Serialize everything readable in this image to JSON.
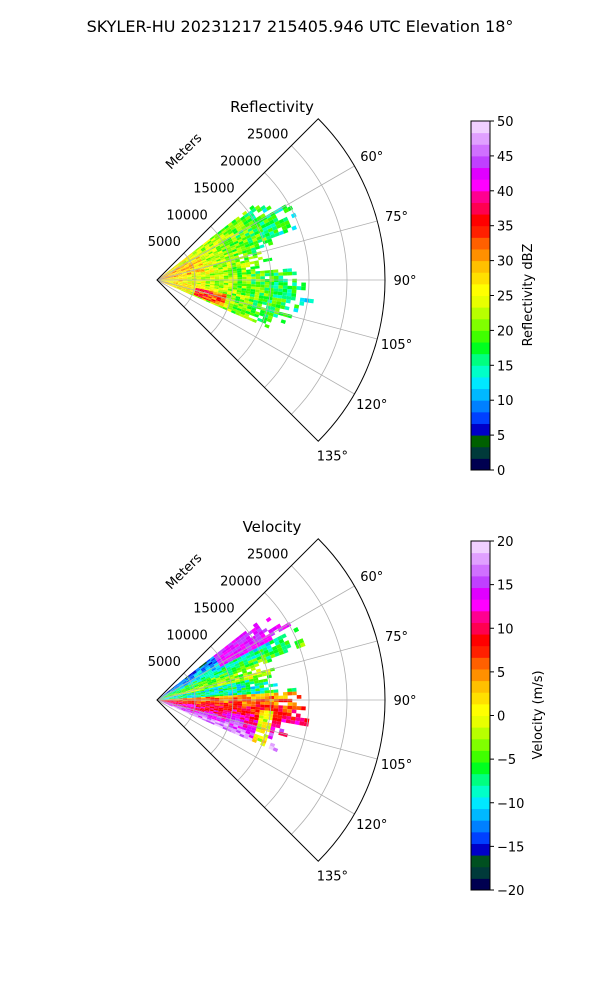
{
  "suptitle": "SKYLER-HU  20231217  215405.946 UTC Elevation 18°",
  "chart_data": [
    {
      "type": "polar-sector",
      "title": "Reflectivity",
      "range_label": "Meters",
      "theta_range_deg": [
        45,
        135
      ],
      "theta_ticks_deg": [
        60,
        75,
        90,
        105,
        120,
        135
      ],
      "theta_tick_labels": [
        "60°",
        "75°",
        "90°",
        "105°",
        "120°",
        "135°"
      ],
      "r_max": 30000,
      "r_ticks": [
        5000,
        10000,
        15000,
        20000,
        25000
      ],
      "r_tick_labels": [
        "5000",
        "10000",
        "15000",
        "20000",
        "25000"
      ],
      "grid": true,
      "colorbar": {
        "label": "Reflectivity dBZ",
        "vmin": 0,
        "vmax": 50,
        "ticks": [
          0,
          5,
          10,
          15,
          20,
          25,
          30,
          35,
          40,
          45,
          50
        ],
        "tick_labels": [
          "0",
          "5",
          "10",
          "15",
          "20",
          "25",
          "30",
          "35",
          "40",
          "45",
          "50"
        ],
        "colors": [
          "#000050",
          "#003a3a",
          "#006000",
          "#0000c8",
          "#0040ff",
          "#0080ff",
          "#00b8ff",
          "#00e8ff",
          "#00ffc8",
          "#00ff80",
          "#00ff20",
          "#40ff00",
          "#80ff00",
          "#b8ff00",
          "#e8ff00",
          "#ffff00",
          "#ffe000",
          "#ffc000",
          "#ff9000",
          "#ff6000",
          "#ff2000",
          "#ff0000",
          "#ff0050",
          "#ff0090",
          "#ff00ff",
          "#e000ff",
          "#c040ff",
          "#d070ff",
          "#e0a0ff",
          "#f0d0ff"
        ]
      },
      "data_extent_range_m": [
        0,
        21000
      ],
      "data_extent_theta_deg": [
        52,
        113
      ]
    },
    {
      "type": "polar-sector",
      "title": "Velocity",
      "range_label": "Meters",
      "theta_range_deg": [
        45,
        135
      ],
      "theta_ticks_deg": [
        60,
        75,
        90,
        105,
        120,
        135
      ],
      "theta_tick_labels": [
        "60°",
        "75°",
        "90°",
        "105°",
        "120°",
        "135°"
      ],
      "r_max": 30000,
      "r_ticks": [
        5000,
        10000,
        15000,
        20000,
        25000
      ],
      "r_tick_labels": [
        "5000",
        "10000",
        "15000",
        "20000",
        "25000"
      ],
      "grid": true,
      "colorbar": {
        "label": "Velocity (m/s)",
        "vmin": -20,
        "vmax": 20,
        "ticks": [
          -20,
          -15,
          -10,
          -5,
          0,
          5,
          10,
          15,
          20
        ],
        "tick_labels": [
          "−20",
          "−15",
          "−10",
          "−5",
          "0",
          "5",
          "10",
          "15",
          "20"
        ],
        "colors": [
          "#000050",
          "#003a3a",
          "#005020",
          "#0000c8",
          "#0040ff",
          "#0080ff",
          "#00b8ff",
          "#00e8ff",
          "#00ffc8",
          "#00ff80",
          "#00ff20",
          "#40ff00",
          "#80ff00",
          "#b8ff00",
          "#e8ff00",
          "#ffff00",
          "#ffe000",
          "#ffc000",
          "#ff9000",
          "#ff6000",
          "#ff2000",
          "#ff0000",
          "#ff0050",
          "#ff0090",
          "#ff00ff",
          "#e000ff",
          "#c040ff",
          "#d070ff",
          "#e0a0ff",
          "#f0d0ff"
        ]
      },
      "data_extent_range_m": [
        0,
        21000
      ],
      "data_extent_theta_deg": [
        52,
        113
      ]
    }
  ]
}
